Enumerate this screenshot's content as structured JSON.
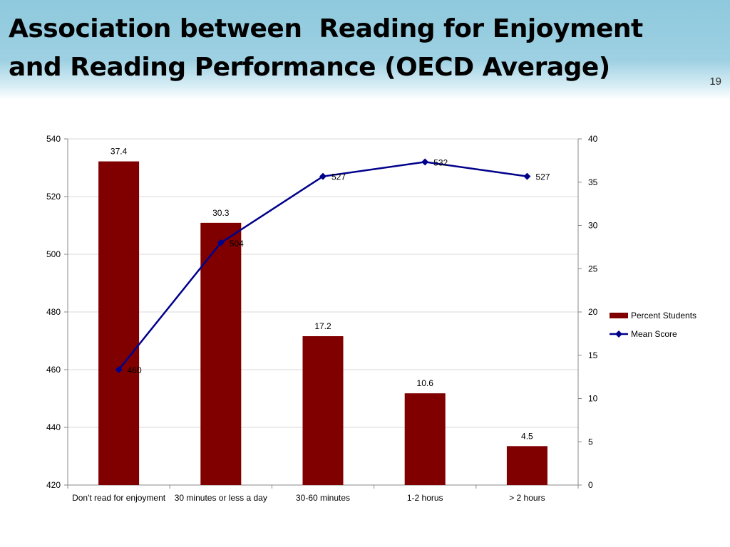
{
  "slide": {
    "title": "Association between  Reading for Enjoyment and Reading Performance (OECD Average)",
    "number": "19"
  },
  "colors": {
    "bar": "#800000",
    "line": "#00008b",
    "grid": "#d9d9d9",
    "axis": "#888888"
  },
  "chart_data": {
    "type": "bar",
    "categories": [
      "Don't read for enjoyment",
      "30 minutes or less a day",
      "30-60 minutes",
      "1-2 horus",
      "> 2 hours"
    ],
    "series": [
      {
        "name": "Percent Students",
        "type": "bar",
        "axis": "right",
        "values": [
          37.4,
          30.3,
          17.2,
          10.6,
          4.5
        ]
      },
      {
        "name": "Mean Score",
        "type": "line",
        "axis": "left",
        "marker": "diamond",
        "values": [
          460,
          504,
          527,
          532,
          527
        ]
      }
    ],
    "y_left": {
      "lim": [
        420,
        540
      ],
      "ticks": [
        420,
        440,
        460,
        480,
        500,
        520,
        540
      ]
    },
    "y_right": {
      "lim": [
        0,
        40
      ],
      "ticks": [
        0,
        5,
        10,
        15,
        20,
        25,
        30,
        35,
        40
      ]
    },
    "grid": true,
    "legend": "right"
  }
}
